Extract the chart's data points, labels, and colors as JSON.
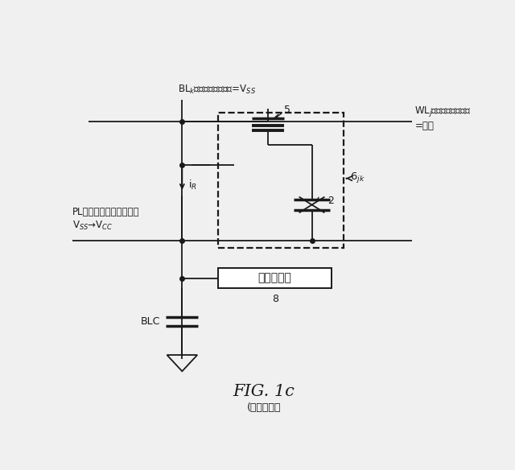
{
  "bg_color": "#f0f0f0",
  "line_color": "#1a1a1a",
  "title": "FIG. 1c",
  "subtitle": "(従来技術）",
  "label_BL": "BL$_k$（ビットライン）=V$_{SS}$",
  "label_WL": "WL$_j$（ワードライン）\n=オン",
  "label_PL": "PL（プレートライン）：\nV$_{SS}$→V$_{CC}$",
  "label_iR": "i$_R$",
  "label_5": "5",
  "label_2": "2",
  "label_6jk": "6$_{jk}$",
  "label_8": "8",
  "label_BLC": "BLC",
  "label_sense": "感知増幅器"
}
